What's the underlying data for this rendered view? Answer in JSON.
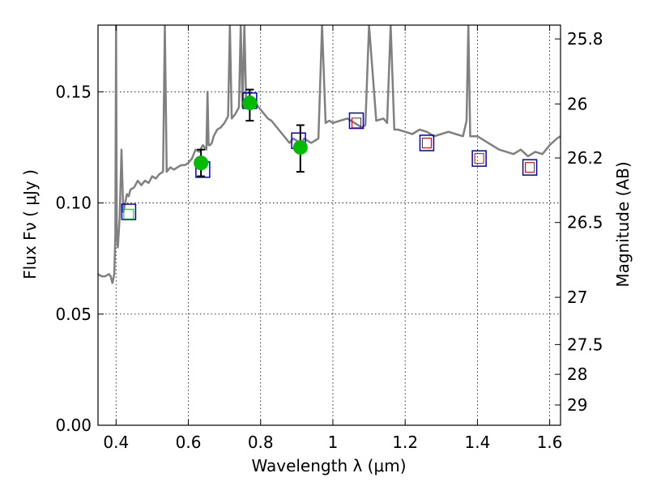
{
  "chart_data": {
    "type": "scatter",
    "title": "",
    "xlabel": "Wavelength  λ (μm)",
    "ylabel": "Flux  Fν  ( μJy )",
    "y2label": "Magnitude (AB)",
    "xlim": [
      0.35,
      1.63
    ],
    "ylim": [
      0.0,
      0.18
    ],
    "grid": true,
    "x_ticks": [
      0.4,
      0.6,
      0.8,
      1.0,
      1.2,
      1.4,
      1.6
    ],
    "x_tick_labels": [
      "0.4",
      "0.6",
      "0.8",
      "1",
      "1.2",
      "1.4",
      "1.6"
    ],
    "y_ticks": [
      0.0,
      0.05,
      0.1,
      0.15
    ],
    "y_tick_labels": [
      "0.00",
      "0.05",
      "0.10",
      "0.15"
    ],
    "y2_ticks": [
      25.8,
      26,
      26.2,
      26.5,
      27,
      27.5,
      28,
      29
    ],
    "y2_tick_labels": [
      "25.8",
      "26",
      "26.2",
      "26.5",
      "27",
      "27.5",
      "28",
      "29"
    ],
    "series": [
      {
        "kind": "spectrum",
        "color": "#808080",
        "x": [
          0.35,
          0.36,
          0.37,
          0.38,
          0.385,
          0.39,
          0.395,
          0.398,
          0.4,
          0.402,
          0.405,
          0.41,
          0.415,
          0.42,
          0.425,
          0.43,
          0.435,
          0.44,
          0.45,
          0.46,
          0.47,
          0.48,
          0.49,
          0.5,
          0.51,
          0.52,
          0.53,
          0.535,
          0.54,
          0.545,
          0.55,
          0.56,
          0.57,
          0.58,
          0.59,
          0.6,
          0.61,
          0.62,
          0.63,
          0.64,
          0.65,
          0.653,
          0.656,
          0.66,
          0.665,
          0.67,
          0.68,
          0.69,
          0.7,
          0.71,
          0.715,
          0.72,
          0.73,
          0.74,
          0.745,
          0.75,
          0.755,
          0.76,
          0.77,
          0.78,
          0.79,
          0.8,
          0.81,
          0.82,
          0.83,
          0.84,
          0.85,
          0.86,
          0.87,
          0.88,
          0.89,
          0.9,
          0.91,
          0.92,
          0.93,
          0.94,
          0.95,
          0.96,
          0.97,
          0.98,
          0.99,
          1.0,
          1.02,
          1.04,
          1.06,
          1.08,
          1.09,
          1.1,
          1.12,
          1.14,
          1.15,
          1.16,
          1.17,
          1.18,
          1.2,
          1.22,
          1.24,
          1.26,
          1.28,
          1.3,
          1.32,
          1.34,
          1.36,
          1.37,
          1.375,
          1.38,
          1.4,
          1.42,
          1.44,
          1.46,
          1.48,
          1.5,
          1.52,
          1.54,
          1.56,
          1.58,
          1.6,
          1.62,
          1.63
        ],
        "y": [
          0.068,
          0.067,
          0.067,
          0.068,
          0.067,
          0.064,
          0.068,
          0.085,
          0.18,
          0.086,
          0.08,
          0.094,
          0.124,
          0.096,
          0.1,
          0.104,
          0.103,
          0.106,
          0.107,
          0.11,
          0.108,
          0.11,
          0.109,
          0.112,
          0.111,
          0.113,
          0.114,
          0.18,
          0.114,
          0.115,
          0.116,
          0.115,
          0.116,
          0.117,
          0.117,
          0.118,
          0.12,
          0.124,
          0.123,
          0.126,
          0.124,
          0.15,
          0.126,
          0.126,
          0.127,
          0.13,
          0.133,
          0.134,
          0.136,
          0.139,
          0.18,
          0.138,
          0.14,
          0.143,
          0.18,
          0.143,
          0.18,
          0.145,
          0.146,
          0.147,
          0.144,
          0.142,
          0.14,
          0.138,
          0.137,
          0.135,
          0.133,
          0.131,
          0.129,
          0.127,
          0.129,
          0.128,
          0.126,
          0.129,
          0.128,
          0.127,
          0.128,
          0.129,
          0.18,
          0.136,
          0.137,
          0.136,
          0.137,
          0.138,
          0.136,
          0.134,
          0.135,
          0.18,
          0.137,
          0.138,
          0.136,
          0.18,
          0.133,
          0.133,
          0.132,
          0.131,
          0.133,
          0.132,
          0.13,
          0.131,
          0.132,
          0.131,
          0.13,
          0.137,
          0.18,
          0.13,
          0.13,
          0.128,
          0.126,
          0.124,
          0.123,
          0.122,
          0.124,
          0.121,
          0.123,
          0.122,
          0.126,
          0.129,
          0.13
        ]
      },
      {
        "kind": "model-squares",
        "color": "#0000cc",
        "x": [
          0.435,
          0.64,
          0.77,
          0.905,
          1.065,
          1.26,
          1.405,
          1.545
        ],
        "y": [
          0.096,
          0.115,
          0.146,
          0.128,
          0.137,
          0.127,
          0.12,
          0.116
        ]
      },
      {
        "kind": "inner-squares",
        "color": "#cc0000",
        "x": [
          1.065,
          1.26,
          1.405,
          1.545
        ],
        "y": [
          0.136,
          0.127,
          0.12,
          0.116
        ]
      },
      {
        "kind": "inner-green-square",
        "color": "#22aa22",
        "x": [
          0.435
        ],
        "y": [
          0.095
        ]
      },
      {
        "kind": "observed",
        "color": "#00bb00",
        "x": [
          0.635,
          0.77,
          0.91
        ],
        "y": [
          0.118,
          0.145,
          0.125
        ],
        "err_low": [
          0.112,
          0.137,
          0.114
        ],
        "err_high": [
          0.124,
          0.151,
          0.135
        ]
      }
    ]
  }
}
